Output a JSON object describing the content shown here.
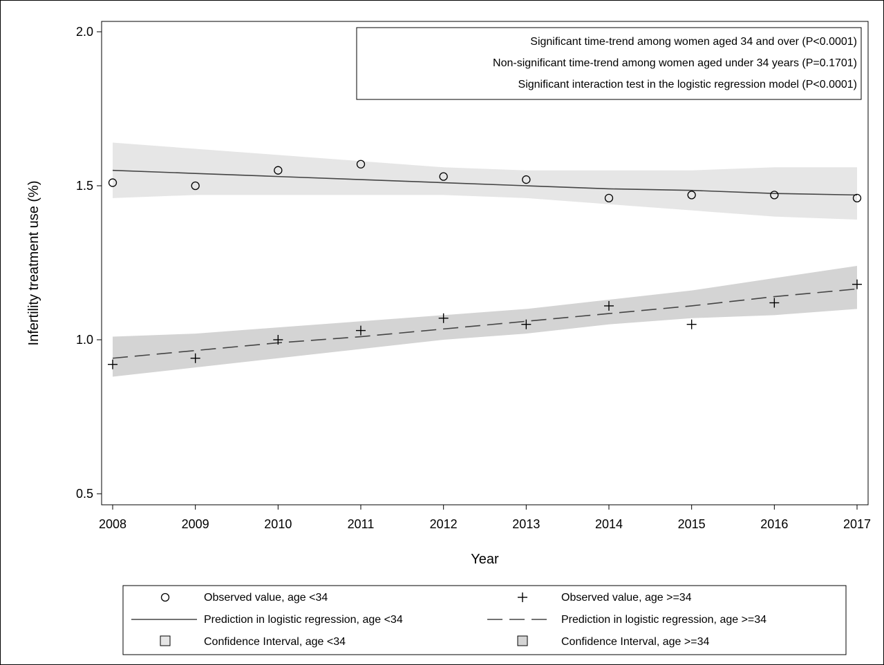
{
  "chart_data": {
    "type": "line",
    "title": "",
    "xlabel": "Year",
    "ylabel": "Infertility treatment use (%)",
    "x": [
      2008,
      2009,
      2010,
      2011,
      2012,
      2013,
      2014,
      2015,
      2016,
      2017
    ],
    "x_ticks": [
      "2008",
      "2009",
      "2010",
      "2011",
      "2012",
      "2013",
      "2014",
      "2015",
      "2016",
      "2017"
    ],
    "y_ticks": [
      "0.5",
      "1.0",
      "1.5",
      "2.0"
    ],
    "xlim": [
      2008,
      2017
    ],
    "ylim": [
      0.5,
      2.0
    ],
    "grid": false,
    "annotations": [
      "Significant  time-trend among women aged 34 and over (P<0.0001)",
      "Non-significant time-trend among women aged under 34 years (P=0.1701)",
      "Significant  interaction test in the logistic regression model (P<0.0001)"
    ],
    "series": [
      {
        "name": "Observed value, age <34",
        "kind": "scatter",
        "marker": "circle",
        "values": [
          1.51,
          1.5,
          1.55,
          1.57,
          1.53,
          1.52,
          1.46,
          1.47,
          1.47,
          1.46
        ]
      },
      {
        "name": "Observed value, age >=34",
        "kind": "scatter",
        "marker": "plus",
        "values": [
          0.92,
          0.94,
          1.0,
          1.03,
          1.07,
          1.05,
          1.11,
          1.05,
          1.12,
          1.18
        ]
      },
      {
        "name": "Prediction in logistic regression, age <34",
        "kind": "line",
        "style": "solid",
        "values": [
          1.55,
          1.54,
          1.53,
          1.52,
          1.51,
          1.5,
          1.49,
          1.485,
          1.475,
          1.47
        ]
      },
      {
        "name": "Prediction in logistic regression, age >=34",
        "kind": "line",
        "style": "dashed",
        "values": [
          0.94,
          0.965,
          0.99,
          1.01,
          1.035,
          1.06,
          1.085,
          1.11,
          1.14,
          1.165
        ]
      },
      {
        "name": "Confidence Interval, age <34",
        "kind": "band",
        "color": "#e6e6e6",
        "lower": [
          1.46,
          1.47,
          1.47,
          1.47,
          1.47,
          1.46,
          1.44,
          1.42,
          1.4,
          1.39
        ],
        "upper": [
          1.64,
          1.62,
          1.6,
          1.58,
          1.56,
          1.55,
          1.55,
          1.55,
          1.56,
          1.56
        ]
      },
      {
        "name": "Confidence Interval, age >=34",
        "kind": "band",
        "color": "#d4d4d4",
        "lower": [
          0.88,
          0.91,
          0.94,
          0.97,
          1.0,
          1.02,
          1.05,
          1.07,
          1.08,
          1.1
        ],
        "upper": [
          1.01,
          1.02,
          1.04,
          1.06,
          1.08,
          1.1,
          1.13,
          1.16,
          1.2,
          1.24
        ]
      }
    ],
    "legend": {
      "placement": "bottom",
      "entries": [
        "Observed value, age <34",
        "Observed value, age >=34",
        "Prediction in logistic regression, age <34",
        "Prediction in logistic regression, age >=34",
        "Confidence Interval, age <34",
        "Confidence Interval, age >=34"
      ]
    }
  }
}
